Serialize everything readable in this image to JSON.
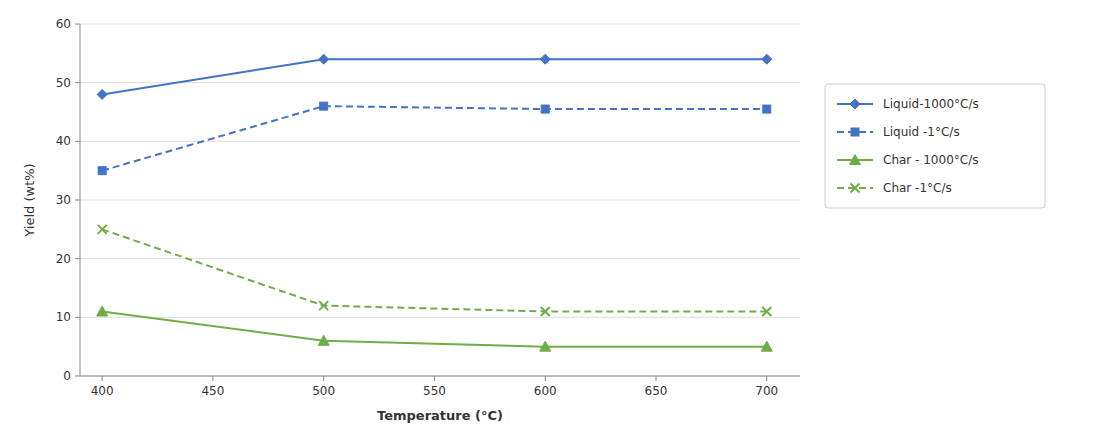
{
  "chart_data": {
    "type": "line",
    "xlabel": "Temperature (°C)",
    "ylabel": "Yield (wt%)",
    "x": [
      400,
      500,
      600,
      700
    ],
    "xlim": [
      390,
      715
    ],
    "ylim": [
      0,
      60
    ],
    "xticks": [
      400,
      450,
      500,
      550,
      600,
      650,
      700
    ],
    "yticks": [
      0,
      10,
      20,
      30,
      40,
      50,
      60
    ],
    "grid": "y",
    "legend": "right",
    "series": [
      {
        "name": "Liquid-1000°C/s",
        "color": "#4472C4",
        "line_style": "solid",
        "marker": "diamond",
        "values": [
          48,
          54,
          54,
          54
        ]
      },
      {
        "name": "Liquid -1°C/s",
        "color": "#4472C4",
        "line_style": "dashed",
        "marker": "square",
        "values": [
          35,
          46,
          45.5,
          45.5
        ]
      },
      {
        "name": "Char - 1000°C/s",
        "color": "#70AD47",
        "line_style": "solid",
        "marker": "triangle",
        "values": [
          11,
          6,
          5,
          5
        ]
      },
      {
        "name": "Char -1°C/s",
        "color": "#70AD47",
        "line_style": "dashed",
        "marker": "x",
        "values": [
          25,
          12,
          11,
          11
        ]
      }
    ]
  }
}
